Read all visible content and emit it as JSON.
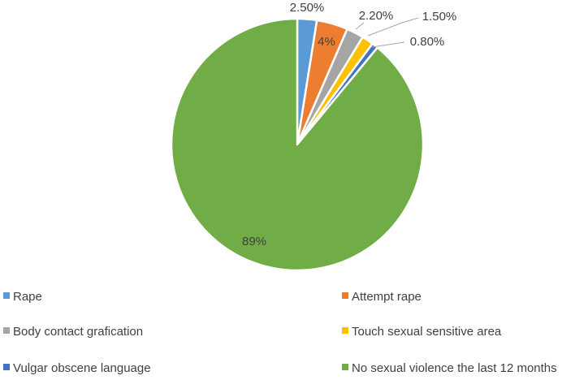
{
  "chart_data": {
    "type": "pie",
    "title": "",
    "categories": [
      "Rape",
      "Attempt rape",
      "Body contact grafication",
      "Touch sexual sensitive area",
      "Vulgar obscene language",
      "No sexual violence the last 12 months"
    ],
    "values": [
      2.5,
      4,
      2.2,
      1.5,
      0.8,
      89
    ],
    "data_labels": [
      "2.50%",
      "4%",
      "2.20%",
      "1.50%",
      "0.80%",
      "89%"
    ],
    "colors": [
      "#5b9bd5",
      "#ed7d31",
      "#a5a5a5",
      "#ffc000",
      "#4472c4",
      "#70ad47"
    ],
    "start_angle_deg": 0,
    "direction": "clockwise",
    "legend_position": "bottom"
  }
}
